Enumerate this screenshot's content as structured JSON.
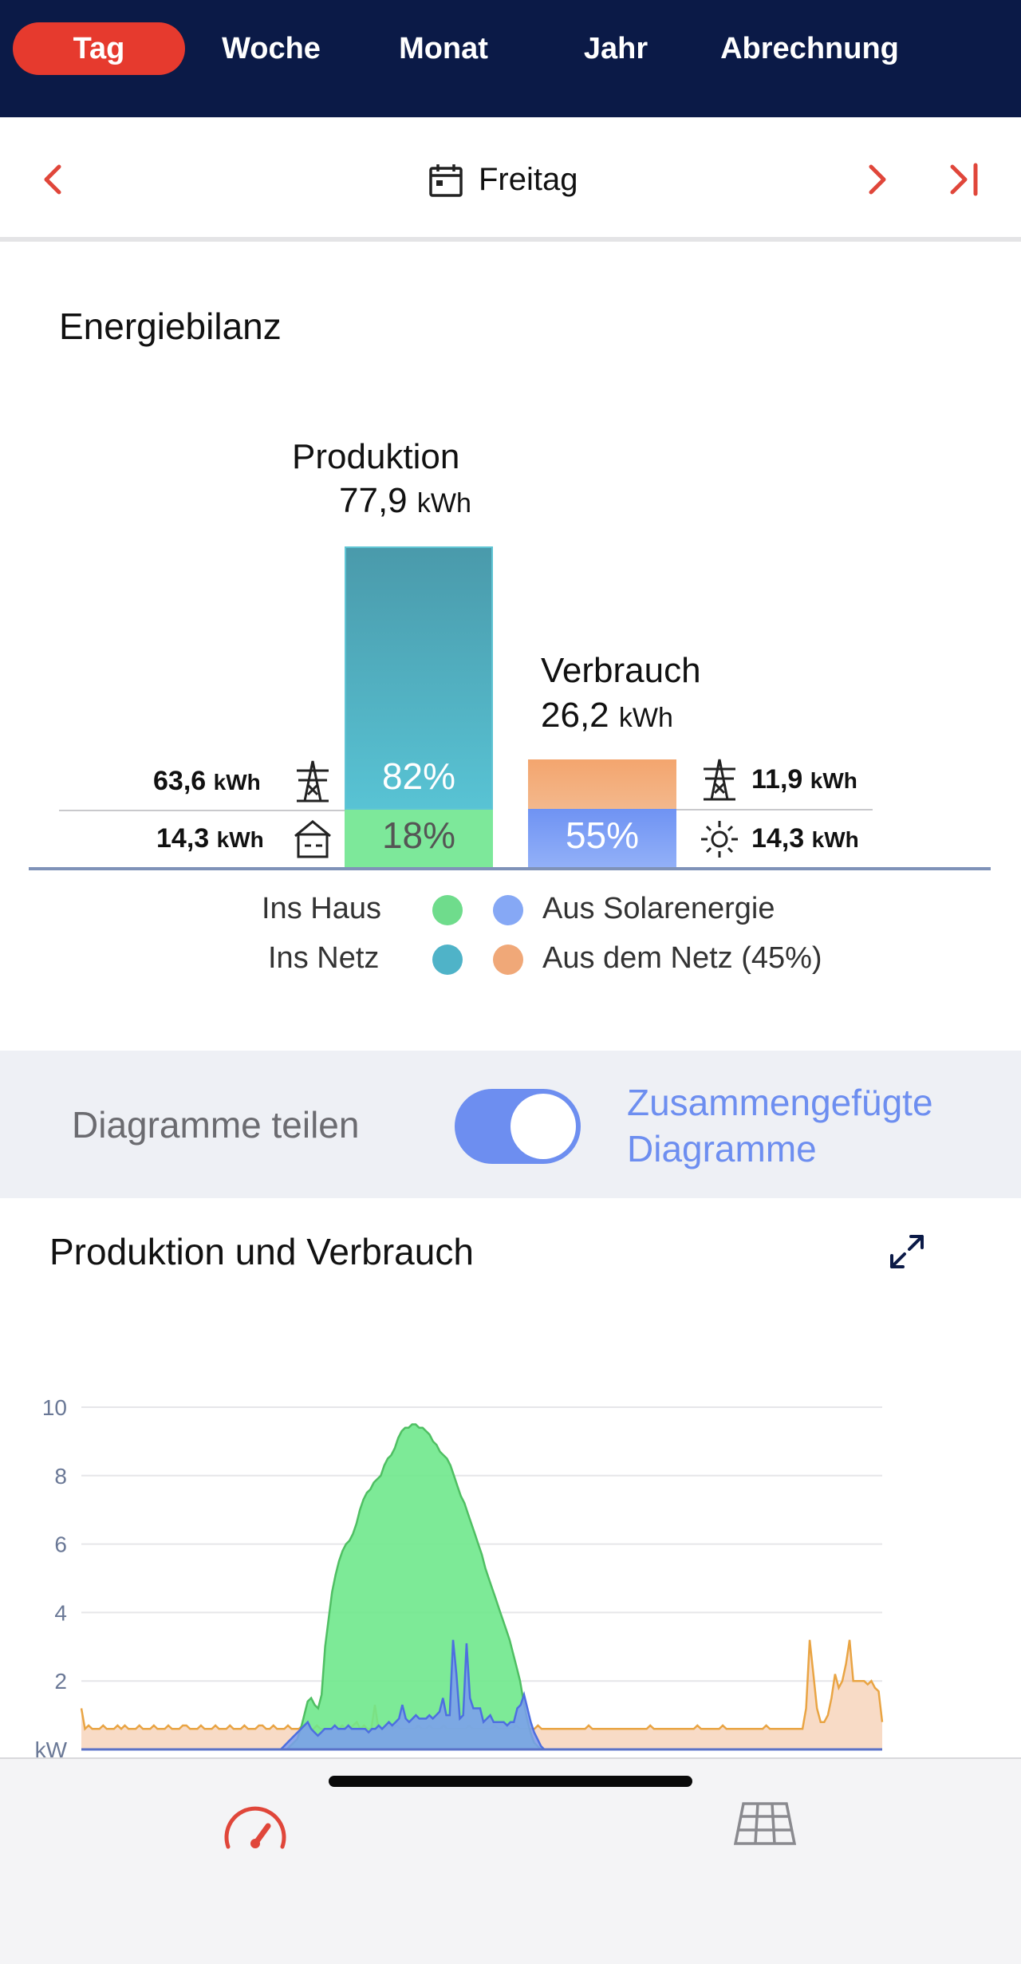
{
  "tabs": [
    {
      "label": "Tag",
      "active": true
    },
    {
      "label": "Woche",
      "active": false
    },
    {
      "label": "Monat",
      "active": false
    },
    {
      "label": "Jahr",
      "active": false
    },
    {
      "label": "Abrechnung",
      "active": false
    }
  ],
  "date_nav": {
    "label": "Freitag",
    "icons": [
      "chevron-left-icon",
      "calendar-icon",
      "chevron-right-icon",
      "skip-to-end-icon"
    ]
  },
  "energy_balance": {
    "title": "Energiebilanz",
    "production": {
      "label": "Produktion",
      "value": "77,9",
      "unit": "kWh",
      "to_grid": {
        "value": "63,6",
        "unit": "kWh",
        "percent": "82%",
        "icon": "power-pylon-icon"
      },
      "to_house": {
        "value": "14,3",
        "unit": "kWh",
        "percent": "18%",
        "icon": "house-icon"
      }
    },
    "consumption": {
      "label": "Verbrauch",
      "value": "26,2",
      "unit": "kWh",
      "from_grid": {
        "value": "11,9",
        "unit": "kWh",
        "icon": "power-pylon-icon"
      },
      "from_solar": {
        "value": "14,3",
        "unit": "kWh",
        "percent": "55%",
        "icon": "sun-icon"
      }
    },
    "legend": {
      "ins_haus": "Ins Haus",
      "ins_netz": "Ins Netz",
      "aus_solar": "Aus Solarenergie",
      "aus_netz": "Aus dem Netz (45%)"
    },
    "colors": {
      "ins_haus": "#6fdc8c",
      "ins_netz": "#4fb3c8",
      "aus_solar": "#86a8f5",
      "aus_netz": "#f0a878"
    }
  },
  "toggle": {
    "left_label": "Diagramme teilen",
    "right_label_line1": "Zusammengefügte",
    "right_label_line2": "Diagramme",
    "state": "on"
  },
  "chart_section": {
    "title": "Produktion und Verbrauch",
    "expand_icon": "expand-icon"
  },
  "chart_data": {
    "type": "area",
    "title": "",
    "ylabel": "kW",
    "ylim": [
      0,
      10
    ],
    "yticks": [
      10,
      8,
      6,
      4,
      2
    ],
    "xlabel": "",
    "series": [
      {
        "color": "#f0b080",
        "values": [
          1.2,
          0.6,
          0.7,
          0.6,
          0.6,
          0.6,
          0.7,
          0.6,
          0.6,
          0.6,
          0.7,
          0.6,
          0.7,
          0.6,
          0.6,
          0.6,
          0.7,
          0.6,
          0.6,
          0.6,
          0.7,
          0.6,
          0.6,
          0.6,
          0.7,
          0.6,
          0.6,
          0.6,
          0.7,
          0.7,
          0.6,
          0.6,
          0.6,
          0.7,
          0.6,
          0.6,
          0.6,
          0.7,
          0.6,
          0.6,
          0.6,
          0.7,
          0.6,
          0.6,
          0.6,
          0.7,
          0.6,
          0.6,
          0.6,
          0.7,
          0.7,
          0.6,
          0.6,
          0.7,
          0.6,
          0.6,
          0.6,
          0.7,
          0.6,
          0.6,
          0.6,
          0.7,
          0.7,
          0.6,
          0.6,
          0.7,
          0.6,
          0.6,
          0.6,
          0.6,
          0.7,
          0.6,
          0.7,
          0.6,
          0.6,
          0.7,
          0.8,
          0.6,
          0.7,
          0.6,
          0.6,
          1.3,
          0.6,
          0.6,
          0.6,
          0.7,
          0.6,
          0.7,
          0.6,
          0.6,
          0.6,
          0.6,
          0.6,
          0.7,
          0.6,
          0.6,
          0.7,
          0.6,
          0.6,
          0.6,
          0.7,
          0.6,
          0.6,
          0.6,
          0.6,
          0.6,
          0.6,
          0.7,
          0.6,
          0.6,
          0.6,
          0.6,
          0.6,
          0.6,
          0.7,
          0.6,
          0.6,
          0.6,
          0.6,
          0.6,
          0.7,
          0.6,
          0.6,
          0.6,
          0.6,
          0.6,
          0.7,
          0.6,
          0.6,
          0.6,
          0.6,
          0.6,
          0.6,
          0.6,
          0.6,
          0.6,
          0.6,
          0.6,
          0.6,
          0.6,
          0.7,
          0.6,
          0.6,
          0.6,
          0.6,
          0.6,
          0.6,
          0.6,
          0.6,
          0.6,
          0.6,
          0.6,
          0.6,
          0.6,
          0.6,
          0.6,
          0.6,
          0.7,
          0.6,
          0.6,
          0.6,
          0.6,
          0.6,
          0.6,
          0.6,
          0.6,
          0.6,
          0.6,
          0.6,
          0.6,
          0.7,
          0.6,
          0.6,
          0.6,
          0.6,
          0.6,
          0.6,
          0.7,
          0.6,
          0.6,
          0.6,
          0.6,
          0.6,
          0.6,
          0.6,
          0.6,
          0.6,
          0.6,
          0.6,
          0.7,
          0.6,
          0.6,
          0.6,
          0.6,
          0.6,
          0.6,
          0.6,
          0.6,
          0.6,
          0.6,
          1.2,
          3.2,
          2.2,
          1.2,
          0.8,
          0.8,
          1.0,
          1.5,
          2.2,
          1.8,
          2.0,
          2.5,
          3.2,
          2.0,
          2.0,
          2.0,
          2.0,
          1.9,
          2.0,
          1.8,
          1.7,
          0.8
        ]
      },
      {
        "color": "#6fe88c",
        "values": [
          0,
          0,
          0,
          0,
          0,
          0,
          0,
          0,
          0,
          0,
          0,
          0,
          0,
          0,
          0,
          0,
          0,
          0,
          0,
          0,
          0,
          0,
          0,
          0,
          0,
          0,
          0,
          0,
          0,
          0,
          0,
          0,
          0,
          0,
          0,
          0,
          0,
          0,
          0,
          0,
          0,
          0,
          0,
          0,
          0,
          0,
          0,
          0,
          0,
          0,
          0,
          0,
          0,
          0,
          0,
          0,
          0,
          0,
          0,
          0,
          0.1,
          0.2,
          0.3,
          0.6,
          1.0,
          1.4,
          1.5,
          1.3,
          1.2,
          1.6,
          3.0,
          3.8,
          4.6,
          5.1,
          5.5,
          5.8,
          6.0,
          6.1,
          6.3,
          6.6,
          7.0,
          7.3,
          7.5,
          7.6,
          7.8,
          7.9,
          8.0,
          8.3,
          8.5,
          8.6,
          8.8,
          9.1,
          9.3,
          9.4,
          9.4,
          9.5,
          9.5,
          9.4,
          9.4,
          9.3,
          9.2,
          9.0,
          8.9,
          8.7,
          8.6,
          8.5,
          8.3,
          8.0,
          7.7,
          7.4,
          7.2,
          6.9,
          6.6,
          6.3,
          6.0,
          5.7,
          5.3,
          5.0,
          4.7,
          4.4,
          4.1,
          3.8,
          3.5,
          3.2,
          2.8,
          2.4,
          2.0,
          1.4,
          0.9,
          0.5,
          0.2,
          0.1,
          0,
          0,
          0,
          0,
          0,
          0,
          0,
          0,
          0,
          0,
          0,
          0,
          0,
          0,
          0,
          0,
          0,
          0,
          0,
          0,
          0,
          0,
          0,
          0,
          0,
          0,
          0,
          0,
          0,
          0,
          0,
          0,
          0,
          0,
          0,
          0,
          0,
          0,
          0,
          0,
          0,
          0,
          0,
          0,
          0,
          0,
          0,
          0,
          0,
          0,
          0,
          0,
          0,
          0,
          0,
          0,
          0,
          0,
          0,
          0,
          0,
          0,
          0,
          0,
          0,
          0,
          0,
          0,
          0,
          0,
          0,
          0,
          0,
          0,
          0,
          0,
          0,
          0,
          0,
          0,
          0,
          0,
          0,
          0,
          0,
          0,
          0,
          0,
          0,
          0,
          0,
          0,
          0,
          0,
          0,
          0,
          0,
          0,
          0
        ]
      },
      {
        "color": "#7b9cf0",
        "values": [
          0,
          0,
          0,
          0,
          0,
          0,
          0,
          0,
          0,
          0,
          0,
          0,
          0,
          0,
          0,
          0,
          0,
          0,
          0,
          0,
          0,
          0,
          0,
          0,
          0,
          0,
          0,
          0,
          0,
          0,
          0,
          0,
          0,
          0,
          0,
          0,
          0,
          0,
          0,
          0,
          0,
          0,
          0,
          0,
          0,
          0,
          0,
          0,
          0,
          0,
          0,
          0,
          0,
          0,
          0,
          0,
          0,
          0,
          0,
          0,
          0.1,
          0.2,
          0.3,
          0.4,
          0.5,
          0.6,
          0.7,
          0.8,
          0.6,
          0.5,
          0.4,
          0.5,
          0.6,
          0.6,
          0.6,
          0.7,
          0.6,
          0.6,
          0.6,
          0.7,
          0.6,
          0.6,
          0.6,
          0.6,
          0.6,
          0.5,
          0.6,
          0.6,
          0.7,
          0.6,
          0.7,
          0.8,
          0.7,
          0.8,
          0.9,
          1.3,
          0.9,
          0.8,
          0.9,
          1.0,
          0.9,
          0.9,
          0.9,
          1.0,
          0.9,
          1.0,
          1.1,
          1.5,
          1.0,
          1.0,
          3.2,
          2.2,
          0.9,
          1.0,
          3.1,
          1.5,
          1.2,
          1.2,
          1.2,
          0.8,
          0.9,
          1.0,
          0.8,
          0.8,
          0.8,
          0.8,
          0.7,
          0.8,
          0.8,
          1.2,
          1.3,
          1.6,
          1.2,
          0.8,
          0.5,
          0.3,
          0.1,
          0,
          0,
          0,
          0,
          0,
          0,
          0,
          0,
          0,
          0,
          0,
          0,
          0,
          0,
          0,
          0,
          0,
          0,
          0,
          0,
          0,
          0,
          0,
          0,
          0,
          0,
          0,
          0,
          0,
          0,
          0,
          0,
          0,
          0,
          0,
          0,
          0,
          0,
          0,
          0,
          0,
          0,
          0,
          0,
          0,
          0,
          0,
          0,
          0,
          0,
          0,
          0,
          0,
          0,
          0,
          0,
          0,
          0,
          0,
          0,
          0,
          0,
          0,
          0,
          0,
          0,
          0,
          0,
          0,
          0,
          0,
          0,
          0,
          0,
          0,
          0,
          0,
          0,
          0,
          0,
          0,
          0,
          0,
          0,
          0,
          0,
          0,
          0,
          0,
          0,
          0,
          0,
          0,
          0,
          0,
          0,
          0,
          0,
          0,
          0,
          0
        ]
      }
    ],
    "grid": true,
    "legend": "none"
  },
  "bottom_bar": {
    "icons": [
      "speedometer-icon",
      "solar-panel-icon"
    ]
  }
}
